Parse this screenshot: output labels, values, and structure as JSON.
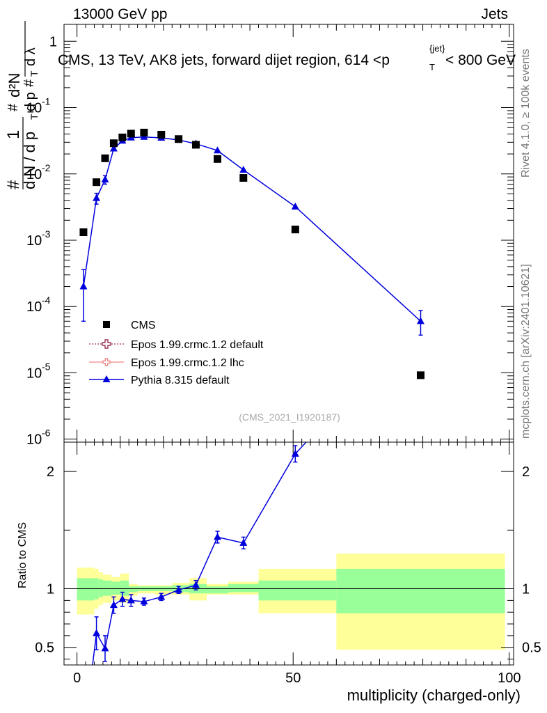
{
  "header": {
    "left": "13000 GeV pp",
    "right": "Jets"
  },
  "side_labels": {
    "rivet": "Rivet 4.1.0, ≥ 100k events",
    "mcplots": "mcplots.cern.ch [arXiv:2401.10621]"
  },
  "main_title": "CMS, 13 TeV, AK8 jets, forward dijet region, 614 <p_T^{jet}< 800 GeV",
  "title_parts": {
    "pre": "CMS, 13 TeV, AK8 jets, forward dijet region, 614 <p",
    "sup": "{jet}",
    "sub": "T",
    "post": "< 800 GeV"
  },
  "ylabel_top": {
    "hash": "#",
    "one": "1",
    "dN": "d N / d p",
    "T": "T",
    "d2N": "d²N",
    "denom": "d p",
    "dlambda": "d λ"
  },
  "watermark": "(CMS_2021_I1920187)",
  "legend": [
    {
      "label": "CMS",
      "color": "#000000",
      "style": "square"
    },
    {
      "label": "Epos 1.99.crmc.1.2 default",
      "color": "#993355",
      "style": "dotted-cross"
    },
    {
      "label": "Epos 1.99.crmc.1.2 lhc",
      "color": "#ee8888",
      "style": "solid-cross"
    },
    {
      "label": "Pythia 8.315 default",
      "color": "#0000dd",
      "style": "triangle"
    }
  ],
  "colors": {
    "data": "#000000",
    "pythia": "#0000dd",
    "band_inner": "#99ff99",
    "band_outer": "#ffff99"
  },
  "chart_data": {
    "type": "scatter",
    "xlabel": "multiplicity (charged-only)",
    "x_ticks": [
      "0",
      "50",
      "100"
    ],
    "xlim": [
      -3,
      101
    ],
    "top": {
      "yscale": "log",
      "ylim": [
        9e-07,
        1.8
      ],
      "y_ticks": [
        "1",
        "10^{-1}",
        "10^{-2}",
        "10^{-3}",
        "10^{-4}",
        "10^{-5}",
        "10^{-6}"
      ],
      "cms": {
        "x": [
          1.5,
          4.5,
          6.5,
          8.5,
          10.5,
          12.5,
          15.5,
          19.5,
          23.5,
          27.5,
          32.5,
          38.5,
          50.5,
          79.5
        ],
        "y": [
          0.00132,
          0.0075,
          0.0172,
          0.029,
          0.0355,
          0.0405,
          0.042,
          0.039,
          0.0335,
          0.0275,
          0.0168,
          0.0087,
          0.00145,
          9.2e-06
        ]
      },
      "pythia": {
        "x": [
          1.5,
          4.5,
          6.5,
          8.5,
          10.5,
          12.5,
          15.5,
          19.5,
          23.5,
          27.5,
          32.5,
          38.5,
          50.5,
          79.5
        ],
        "y": [
          0.0002,
          0.0043,
          0.0082,
          0.024,
          0.0315,
          0.0352,
          0.036,
          0.035,
          0.0325,
          0.0285,
          0.0225,
          0.0115,
          0.0032,
          6e-05
        ],
        "err_lo": [
          0.00014,
          0.0008,
          0.0012,
          0.0016,
          0.0014,
          0.0012,
          0.001,
          0.001,
          0.001,
          0.001,
          0.0009,
          0.0006,
          0.0002,
          2.3e-05
        ],
        "err_hi": [
          0.00016,
          0.0008,
          0.0012,
          0.0016,
          0.0014,
          0.0012,
          0.001,
          0.001,
          0.001,
          0.001,
          0.0009,
          0.0006,
          0.0002,
          2.7e-05
        ]
      }
    },
    "ratio": {
      "ylabel": "Ratio to CMS",
      "ylim": [
        0.35,
        2.25
      ],
      "y_ticks": [
        "0.5",
        "1",
        "2"
      ],
      "pythia_x": [
        4.5,
        6.5,
        8.5,
        10.5,
        12.5,
        15.5,
        19.5,
        23.5,
        27.5,
        32.5,
        38.5,
        50.5
      ],
      "pythia_y": [
        0.62,
        0.49,
        0.86,
        0.91,
        0.9,
        0.89,
        0.93,
        0.99,
        1.03,
        1.44,
        1.39,
        2.15
      ],
      "pythia_err": [
        0.14,
        0.11,
        0.07,
        0.06,
        0.05,
        0.03,
        0.03,
        0.03,
        0.04,
        0.05,
        0.05,
        0.07
      ],
      "pythia_line_to": [
        53,
        2.25
      ],
      "pythia_line_from": [
        3.6,
        0.35
      ],
      "bands": [
        {
          "x0": 0,
          "x1": 4,
          "inner": [
            0.9,
            1.09
          ],
          "outer": [
            0.78,
            1.18
          ]
        },
        {
          "x0": 4,
          "x1": 5,
          "inner": [
            0.91,
            1.09
          ],
          "outer": [
            0.83,
            1.17
          ]
        },
        {
          "x0": 5,
          "x1": 6,
          "inner": [
            0.93,
            1.08
          ],
          "outer": [
            0.86,
            1.14
          ]
        },
        {
          "x0": 6,
          "x1": 8,
          "inner": [
            0.94,
            1.07
          ],
          "outer": [
            0.88,
            1.12
          ]
        },
        {
          "x0": 8,
          "x1": 10,
          "inner": [
            0.95,
            1.06
          ],
          "outer": [
            0.9,
            1.1
          ]
        },
        {
          "x0": 10,
          "x1": 12,
          "inner": [
            0.94,
            1.07
          ],
          "outer": [
            0.88,
            1.13
          ]
        },
        {
          "x0": 12,
          "x1": 14,
          "inner": [
            0.97,
            1.02
          ],
          "outer": [
            0.94,
            1.04
          ]
        },
        {
          "x0": 14,
          "x1": 18,
          "inner": [
            0.98,
            1.02
          ],
          "outer": [
            0.96,
            1.03
          ]
        },
        {
          "x0": 18,
          "x1": 22,
          "inner": [
            0.98,
            1.02
          ],
          "outer": [
            0.95,
            1.03
          ]
        },
        {
          "x0": 22,
          "x1": 26,
          "inner": [
            0.97,
            1.03
          ],
          "outer": [
            0.95,
            1.05
          ]
        },
        {
          "x0": 26,
          "x1": 30,
          "inner": [
            0.96,
            1.04
          ],
          "outer": [
            0.9,
            1.09
          ]
        },
        {
          "x0": 30,
          "x1": 35,
          "inner": [
            0.96,
            1.02
          ],
          "outer": [
            0.95,
            1.04
          ]
        },
        {
          "x0": 35,
          "x1": 42,
          "inner": [
            0.97,
            1.04
          ],
          "outer": [
            0.95,
            1.06
          ]
        },
        {
          "x0": 42,
          "x1": 60,
          "inner": [
            0.9,
            1.07
          ],
          "outer": [
            0.79,
            1.17
          ]
        },
        {
          "x0": 60,
          "x1": 99,
          "inner": [
            0.79,
            1.17
          ],
          "outer": [
            0.48,
            1.3
          ]
        }
      ]
    }
  }
}
